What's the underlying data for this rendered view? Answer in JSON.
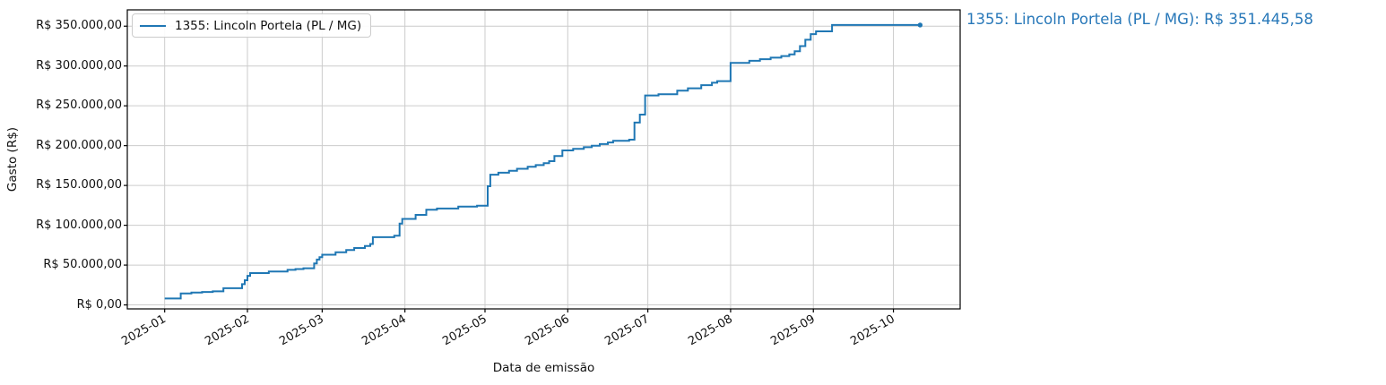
{
  "annotation": {
    "text": "1355: Lincoln Portela (PL / MG): R$ 351.445,58",
    "color": "#2878b9"
  },
  "chart_data": {
    "type": "line",
    "step_style": "post",
    "title": "",
    "xlabel": "Data de emissão",
    "ylabel": "Gasto (R$)",
    "grid": true,
    "legend_position": "upper left",
    "line_color": "#1f77b4",
    "grid_color": "#cccccc",
    "spine_color": "#000000",
    "xlim": [
      "2024-12-18",
      "2025-10-26"
    ],
    "ylim": [
      -5000,
      370500
    ],
    "x_ticks": [
      {
        "date": "2025-01-01",
        "label": "2025-01"
      },
      {
        "date": "2025-02-01",
        "label": "2025-02"
      },
      {
        "date": "2025-03-01",
        "label": "2025-03"
      },
      {
        "date": "2025-04-01",
        "label": "2025-04"
      },
      {
        "date": "2025-05-01",
        "label": "2025-05"
      },
      {
        "date": "2025-06-01",
        "label": "2025-06"
      },
      {
        "date": "2025-07-01",
        "label": "2025-07"
      },
      {
        "date": "2025-08-01",
        "label": "2025-08"
      },
      {
        "date": "2025-09-01",
        "label": "2025-09"
      },
      {
        "date": "2025-10-01",
        "label": "2025-10"
      }
    ],
    "y_ticks": [
      {
        "value": 0,
        "label": "R$ 0,00"
      },
      {
        "value": 50000,
        "label": "R$ 50.000,00"
      },
      {
        "value": 100000,
        "label": "R$ 100.000,00"
      },
      {
        "value": 150000,
        "label": "R$ 150.000,00"
      },
      {
        "value": 200000,
        "label": "R$ 200.000,00"
      },
      {
        "value": 250000,
        "label": "R$ 250.000,00"
      },
      {
        "value": 300000,
        "label": "R$ 300.000,00"
      },
      {
        "value": 350000,
        "label": "R$ 350.000,00"
      }
    ],
    "series": [
      {
        "name": "1355: Lincoln Portela (PL / MG)",
        "final_value_label": "R$ 351.445,58",
        "final_value": 351445.58,
        "points": [
          [
            "2025-01-01",
            8000
          ],
          [
            "2025-01-07",
            14500
          ],
          [
            "2025-01-11",
            15500
          ],
          [
            "2025-01-15",
            16200
          ],
          [
            "2025-01-19",
            17000
          ],
          [
            "2025-01-23",
            21000
          ],
          [
            "2025-01-30",
            26000
          ],
          [
            "2025-01-31",
            31000
          ],
          [
            "2025-02-01",
            36500
          ],
          [
            "2025-02-02",
            40000
          ],
          [
            "2025-02-09",
            42000
          ],
          [
            "2025-02-16",
            44000
          ],
          [
            "2025-02-19",
            45000
          ],
          [
            "2025-02-22",
            46000
          ],
          [
            "2025-02-26",
            52000
          ],
          [
            "2025-02-27",
            57000
          ],
          [
            "2025-02-28",
            60000
          ],
          [
            "2025-03-01",
            63000
          ],
          [
            "2025-03-06",
            66000
          ],
          [
            "2025-03-10",
            69000
          ],
          [
            "2025-03-13",
            71500
          ],
          [
            "2025-03-17",
            74000
          ],
          [
            "2025-03-19",
            76500
          ],
          [
            "2025-03-20",
            85000
          ],
          [
            "2025-03-28",
            87000
          ],
          [
            "2025-03-30",
            102000
          ],
          [
            "2025-03-31",
            108000
          ],
          [
            "2025-04-05",
            113000
          ],
          [
            "2025-04-09",
            119500
          ],
          [
            "2025-04-13",
            121000
          ],
          [
            "2025-04-21",
            123500
          ],
          [
            "2025-04-28",
            124500
          ],
          [
            "2025-05-02",
            149000
          ],
          [
            "2025-05-03",
            163500
          ],
          [
            "2025-05-06",
            166000
          ],
          [
            "2025-05-10",
            168500
          ],
          [
            "2025-05-13",
            171000
          ],
          [
            "2025-05-17",
            173500
          ],
          [
            "2025-05-20",
            175500
          ],
          [
            "2025-05-23",
            178000
          ],
          [
            "2025-05-25",
            180500
          ],
          [
            "2025-05-27",
            187000
          ],
          [
            "2025-05-30",
            194000
          ],
          [
            "2025-06-03",
            196000
          ],
          [
            "2025-06-07",
            198000
          ],
          [
            "2025-06-10",
            200000
          ],
          [
            "2025-06-13",
            202000
          ],
          [
            "2025-06-16",
            204000
          ],
          [
            "2025-06-18",
            206000
          ],
          [
            "2025-06-24",
            207500
          ],
          [
            "2025-06-26",
            229000
          ],
          [
            "2025-06-28",
            239000
          ],
          [
            "2025-06-30",
            263000
          ],
          [
            "2025-07-05",
            264500
          ],
          [
            "2025-07-12",
            269000
          ],
          [
            "2025-07-16",
            272000
          ],
          [
            "2025-07-21",
            276000
          ],
          [
            "2025-07-25",
            279000
          ],
          [
            "2025-07-27",
            281000
          ],
          [
            "2025-08-01",
            304000
          ],
          [
            "2025-08-08",
            306500
          ],
          [
            "2025-08-12",
            308500
          ],
          [
            "2025-08-16",
            310500
          ],
          [
            "2025-08-20",
            312500
          ],
          [
            "2025-08-23",
            314500
          ],
          [
            "2025-08-25",
            318500
          ],
          [
            "2025-08-27",
            325000
          ],
          [
            "2025-08-29",
            333000
          ],
          [
            "2025-08-31",
            340000
          ],
          [
            "2025-09-02",
            343500
          ],
          [
            "2025-09-08",
            351445.58
          ],
          [
            "2025-10-11",
            351445.58
          ]
        ]
      }
    ]
  }
}
